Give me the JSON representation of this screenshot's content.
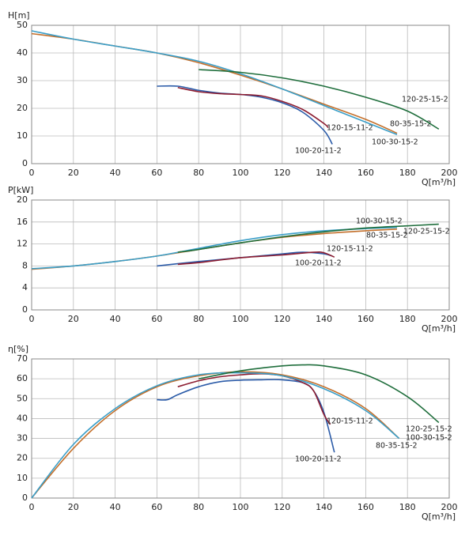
{
  "chart_data": [
    {
      "type": "line",
      "y_label": "H[m]",
      "x_label": "Q[m³/h]",
      "grid": true,
      "xlim": [
        0,
        200
      ],
      "xticks": [
        0,
        20,
        40,
        60,
        80,
        100,
        120,
        140,
        160,
        180,
        200
      ],
      "ylim": [
        0,
        50
      ],
      "yticks": [
        0,
        10,
        20,
        30,
        40,
        50
      ],
      "series": [
        {
          "name": "100-20-11-2",
          "color": "#2b5ba8",
          "x": [
            60,
            70,
            80,
            90,
            100,
            110,
            120,
            130,
            140,
            144
          ],
          "values": [
            28,
            28,
            26.5,
            25.5,
            25,
            24,
            22,
            18.5,
            12,
            7
          ]
        },
        {
          "name": "120-15-11-2",
          "color": "#8c1c30",
          "x": [
            70,
            80,
            90,
            100,
            110,
            120,
            130,
            140,
            142
          ],
          "values": [
            27.5,
            26,
            25.3,
            25,
            24.5,
            22.5,
            19.5,
            14.5,
            13
          ]
        },
        {
          "name": "80-35-15-2",
          "color": "#c4702c",
          "x": [
            0,
            20,
            40,
            60,
            80,
            100,
            120,
            140,
            160,
            175
          ],
          "values": [
            47,
            45,
            42.5,
            40,
            36.5,
            32,
            27,
            21.5,
            16,
            11
          ]
        },
        {
          "name": "100-30-15-2",
          "color": "#3a9ec8",
          "x": [
            0,
            20,
            40,
            60,
            80,
            100,
            120,
            140,
            160,
            175
          ],
          "values": [
            48,
            45,
            42.5,
            40,
            37,
            32.5,
            27,
            21,
            15,
            10.5
          ]
        },
        {
          "name": "120-25-15-2",
          "color": "#1f6e3c",
          "x": [
            80,
            100,
            120,
            140,
            160,
            180,
            195
          ],
          "values": [
            34,
            33,
            31,
            28,
            24,
            19,
            12.5
          ]
        }
      ]
    },
    {
      "type": "line",
      "y_label": "P[kW]",
      "x_label": "Q[m³/h]",
      "grid": true,
      "xlim": [
        0,
        200
      ],
      "xticks": [
        0,
        20,
        40,
        60,
        80,
        100,
        120,
        140,
        160,
        180,
        200
      ],
      "ylim": [
        0,
        20
      ],
      "yticks": [
        0,
        4,
        8,
        12,
        16,
        20
      ],
      "series": [
        {
          "name": "100-20-11-2",
          "color": "#2b5ba8",
          "x": [
            60,
            80,
            100,
            120,
            130,
            140,
            144
          ],
          "values": [
            8,
            8.8,
            9.5,
            10.2,
            10.5,
            10.2,
            9.8
          ]
        },
        {
          "name": "120-15-11-2",
          "color": "#8c1c30",
          "x": [
            70,
            80,
            100,
            120,
            135,
            140,
            145
          ],
          "values": [
            8.3,
            8.6,
            9.5,
            10,
            10.5,
            10.4,
            9.6
          ]
        },
        {
          "name": "80-35-15-2",
          "color": "#c4702c",
          "x": [
            0,
            20,
            40,
            60,
            80,
            100,
            120,
            140,
            160,
            175
          ],
          "values": [
            7.4,
            8,
            8.8,
            9.8,
            11,
            12.2,
            13.2,
            13.9,
            14.4,
            14.7
          ]
        },
        {
          "name": "100-30-15-2",
          "color": "#3a9ec8",
          "x": [
            0,
            20,
            40,
            60,
            80,
            100,
            120,
            140,
            160,
            175
          ],
          "values": [
            7.5,
            8,
            8.8,
            9.8,
            11.2,
            12.6,
            13.7,
            14.4,
            14.8,
            15
          ]
        },
        {
          "name": "120-25-15-2",
          "color": "#1f6e3c",
          "x": [
            70,
            80,
            100,
            120,
            140,
            160,
            180,
            195
          ],
          "values": [
            10.5,
            11,
            12.2,
            13.3,
            14.2,
            14.9,
            15.3,
            15.6
          ]
        }
      ]
    },
    {
      "type": "line",
      "y_label": "η[%]",
      "x_label": "Q[m³/h]",
      "grid": true,
      "xlim": [
        0,
        200
      ],
      "xticks": [
        0,
        20,
        40,
        60,
        80,
        100,
        120,
        140,
        160,
        180,
        200
      ],
      "ylim": [
        0,
        70
      ],
      "yticks": [
        0,
        10,
        20,
        30,
        40,
        50,
        60,
        70
      ],
      "series": [
        {
          "name": "100-20-11-2",
          "color": "#2b5ba8",
          "x": [
            60,
            65,
            70,
            80,
            90,
            100,
            110,
            120,
            130,
            135,
            140,
            145
          ],
          "values": [
            49.5,
            49.5,
            52,
            56,
            58.5,
            59.3,
            59.5,
            59.5,
            58,
            54,
            43,
            23
          ]
        },
        {
          "name": "120-15-11-2",
          "color": "#8c1c30",
          "x": [
            70,
            80,
            90,
            100,
            110,
            120,
            130,
            135,
            140,
            143
          ],
          "values": [
            56,
            59,
            61,
            62,
            62.5,
            61.5,
            58,
            54,
            42,
            37
          ]
        },
        {
          "name": "80-35-15-2",
          "color": "#c4702c",
          "x": [
            0,
            20,
            40,
            60,
            80,
            100,
            120,
            140,
            160,
            176
          ],
          "values": [
            0,
            25,
            44,
            56,
            61.5,
            63.5,
            62,
            56,
            45,
            30
          ]
        },
        {
          "name": "100-30-15-2",
          "color": "#3a9ec8",
          "x": [
            0,
            20,
            40,
            60,
            80,
            100,
            120,
            140,
            160,
            176
          ],
          "values": [
            0,
            27,
            45,
            56.5,
            62,
            63,
            61.5,
            55,
            44,
            30
          ]
        },
        {
          "name": "120-25-15-2",
          "color": "#1f6e3c",
          "x": [
            80,
            100,
            120,
            130,
            140,
            160,
            180,
            195
          ],
          "values": [
            60,
            64,
            66.5,
            67,
            66.5,
            62,
            51,
            38
          ]
        }
      ]
    }
  ]
}
